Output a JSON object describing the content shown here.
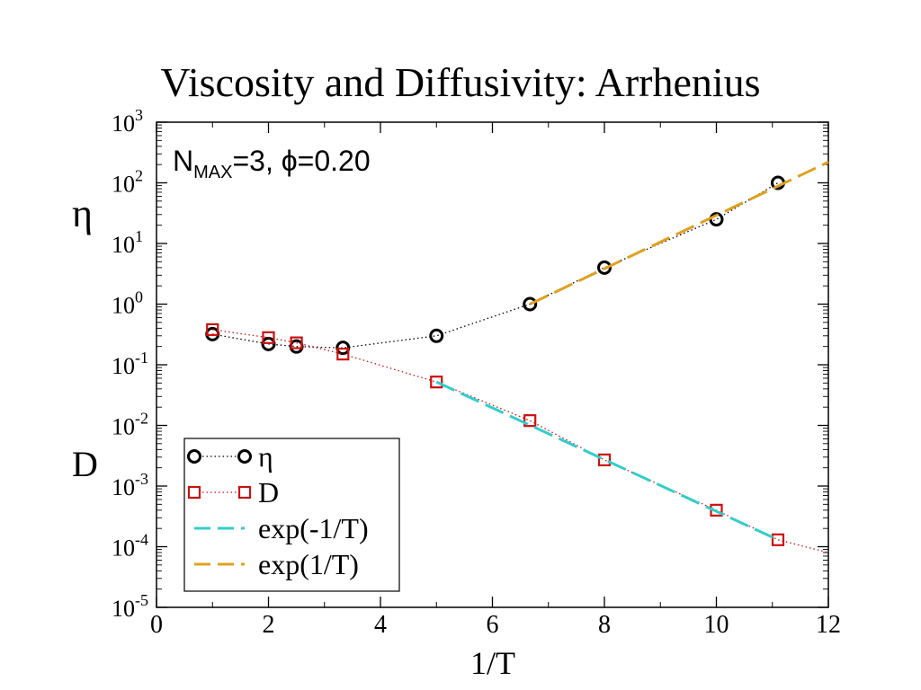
{
  "slide": {
    "title": "Viscosity and Diffusivity: Arrhenius"
  },
  "chart_data": {
    "type": "scatter",
    "xlabel": "1/T",
    "ylabel_top": "η",
    "ylabel_bottom": "D",
    "x_ticks": [
      "0",
      "2",
      "4",
      "6",
      "8",
      "10",
      "12"
    ],
    "y_ticks": [
      {
        "base": "10",
        "exp": "-5"
      },
      {
        "base": "10",
        "exp": "-4"
      },
      {
        "base": "10",
        "exp": "-3"
      },
      {
        "base": "10",
        "exp": "-2"
      },
      {
        "base": "10",
        "exp": "-1"
      },
      {
        "base": "10",
        "exp": "0"
      },
      {
        "base": "10",
        "exp": "1"
      },
      {
        "base": "10",
        "exp": "2"
      },
      {
        "base": "10",
        "exp": "3"
      }
    ],
    "xlim": [
      0,
      12
    ],
    "ylim": [
      1e-05,
      1000
    ],
    "yscale": "log",
    "annotation": {
      "n": "N",
      "sub": "MAX",
      "rest": "=3, ϕ=0.20"
    },
    "legend_position": "bottom-left",
    "series": [
      {
        "name": "η",
        "color": "#000000",
        "marker": "circle",
        "line": "dotted",
        "x": [
          1.0,
          2.0,
          2.5,
          3.33,
          5.0,
          6.67,
          8.0,
          10.0,
          11.1
        ],
        "y": [
          0.32,
          0.22,
          0.2,
          0.19,
          0.3,
          1.0,
          4.0,
          25.0,
          100.0
        ]
      },
      {
        "name": "D",
        "color": "#cc1111",
        "marker": "square",
        "line": "dotted",
        "x": [
          1.0,
          2.0,
          2.5,
          3.33,
          5.0,
          6.67,
          8.0,
          10.0,
          11.1
        ],
        "y": [
          0.38,
          0.28,
          0.23,
          0.15,
          0.052,
          0.012,
          0.0027,
          0.0004,
          0.00013
        ],
        "extra_x": [
          12.0
        ],
        "extra_y": [
          8e-05
        ]
      },
      {
        "name": "exp(-1/T)",
        "color": "#33cccc",
        "marker": "none",
        "line": "dashed",
        "x": [
          5.0,
          11.1
        ],
        "y": [
          0.052,
          0.00013
        ]
      },
      {
        "name": "exp(1/T)",
        "color": "#e0a020",
        "marker": "none",
        "line": "dashed",
        "x": [
          6.67,
          12.0
        ],
        "y": [
          1.0,
          220
        ]
      }
    ]
  }
}
